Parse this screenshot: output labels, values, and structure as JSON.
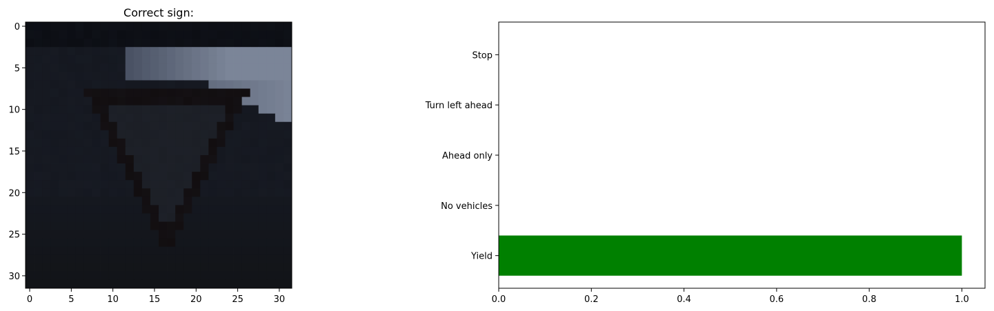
{
  "chart_data": [
    {
      "type": "image",
      "title": "Correct sign:",
      "xlim": [
        -0.5,
        31.5
      ],
      "ylim": [
        31.5,
        -0.5
      ],
      "xticks": [
        0,
        5,
        10,
        15,
        20,
        25,
        30
      ],
      "yticks": [
        0,
        5,
        10,
        15,
        20,
        25,
        30
      ],
      "image_size": [
        32,
        32
      ],
      "content": "yield-sign-photo",
      "colors": {
        "background": "#151820",
        "sky": "#7b8598",
        "sky_dark": "#4a5264",
        "triangle_edge": "#120e10",
        "triangle_fill": "#1c1f26",
        "road": "#121418"
      }
    },
    {
      "type": "bar",
      "orientation": "horizontal",
      "categories": [
        "Yield",
        "No vehicles",
        "Ahead only",
        "Turn left ahead",
        "Stop"
      ],
      "values": [
        1.0,
        0.0,
        0.0,
        0.0,
        0.0
      ],
      "xlim": [
        0,
        1.05
      ],
      "xticks": [
        "0.0",
        "0.2",
        "0.4",
        "0.6",
        "0.8",
        "1.0"
      ],
      "xtick_values": [
        0.0,
        0.2,
        0.4,
        0.6,
        0.8,
        1.0
      ],
      "bar_color": "#008000",
      "grid": false
    }
  ]
}
